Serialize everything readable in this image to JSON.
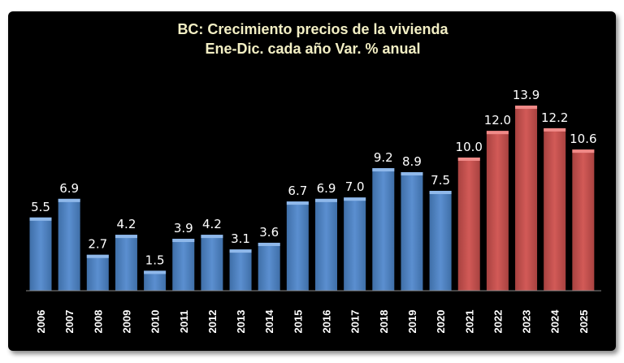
{
  "chart_data": {
    "type": "bar",
    "title": "BC: Crecimiento precios de la vivienda",
    "subtitle": "Ene-Dic. cada año Var. % anual",
    "xlabel": "",
    "ylabel": "",
    "categories": [
      "2006",
      "2007",
      "2008",
      "2009",
      "2010",
      "2011",
      "2012",
      "2013",
      "2014",
      "2015",
      "2016",
      "2017",
      "2018",
      "2019",
      "2020",
      "2021",
      "2022",
      "2023",
      "2024",
      "2025"
    ],
    "values": [
      5.5,
      6.9,
      2.7,
      4.2,
      1.5,
      3.9,
      4.2,
      3.1,
      3.6,
      6.7,
      6.9,
      7.0,
      9.2,
      8.9,
      7.5,
      10.0,
      12.0,
      13.9,
      12.2,
      10.6
    ],
    "value_labels": [
      "5.5",
      "6.9",
      "2.7",
      "4.2",
      "1.5",
      "3.9",
      "4.2",
      "3.1",
      "3.6",
      "6.7",
      "6.9",
      "7.0",
      "9.2",
      "8.9",
      "7.5",
      "10.0",
      "12.0",
      "13.9",
      "12.2",
      "10.6"
    ],
    "bar_colors": [
      "#4f81bd",
      "#4f81bd",
      "#4f81bd",
      "#4f81bd",
      "#4f81bd",
      "#4f81bd",
      "#4f81bd",
      "#4f81bd",
      "#4f81bd",
      "#4f81bd",
      "#4f81bd",
      "#4f81bd",
      "#4f81bd",
      "#4f81bd",
      "#4f81bd",
      "#c0504d",
      "#c0504d",
      "#c0504d",
      "#c0504d",
      "#c0504d"
    ],
    "ylim": [
      0,
      15
    ],
    "grid": false,
    "legend": "none",
    "background": "#050505"
  }
}
